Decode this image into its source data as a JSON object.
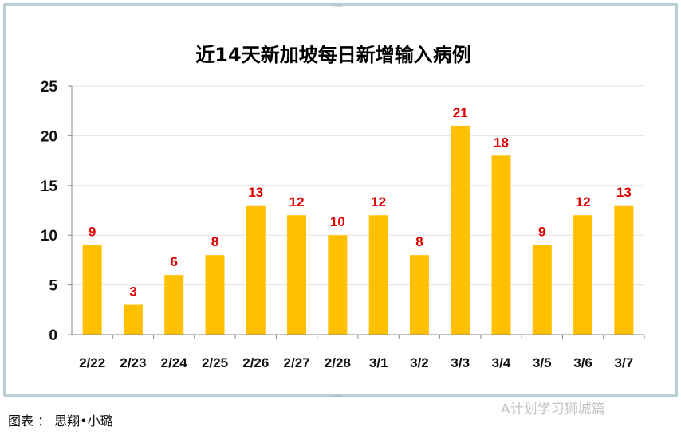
{
  "chart_data": {
    "type": "bar",
    "title": "近14天新加坡每日新增输入病例",
    "categories": [
      "2/22",
      "2/23",
      "2/24",
      "2/25",
      "2/26",
      "2/27",
      "2/28",
      "3/1",
      "3/2",
      "3/3",
      "3/4",
      "3/5",
      "3/6",
      "3/7"
    ],
    "values": [
      9,
      3,
      6,
      8,
      13,
      12,
      10,
      12,
      8,
      21,
      18,
      9,
      12,
      13
    ],
    "xlabel": "",
    "ylabel": "",
    "ylim": [
      0,
      25
    ],
    "yticks": [
      0,
      5,
      10,
      15,
      20,
      25
    ],
    "grid": true,
    "legend": "none",
    "bar_color": "#ffc000",
    "label_color": "#e00000"
  },
  "caption": "图表 ： 思翔•小璐",
  "watermark": "A计划学习狮城篇"
}
